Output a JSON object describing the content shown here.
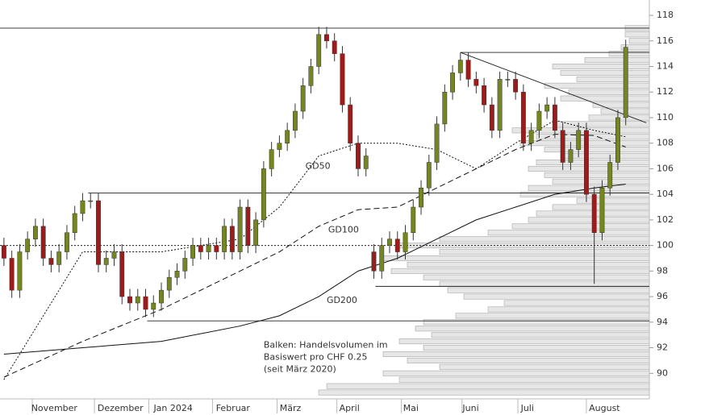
{
  "chart_data": {
    "type": "candlestick",
    "ylim": [
      88,
      119.2
    ],
    "yticks": [
      90,
      92,
      94,
      96,
      98,
      100,
      102,
      104,
      106,
      108,
      110,
      112,
      114,
      116,
      118
    ],
    "xlim": [
      -0.5,
      82
    ],
    "xticks": [
      {
        "value": 6.4,
        "label": "November"
      },
      {
        "value": 14.8,
        "label": "Dezember"
      },
      {
        "value": 21.5,
        "label": "Jan 2024"
      },
      {
        "value": 29.1,
        "label": "Februar"
      },
      {
        "value": 36.4,
        "label": "März"
      },
      {
        "value": 43.9,
        "label": "April"
      },
      {
        "value": 51.7,
        "label": "Mai"
      },
      {
        "value": 59.3,
        "label": "Juni"
      },
      {
        "value": 66.5,
        "label": "Juli"
      },
      {
        "value": 76.3,
        "label": "August"
      }
    ],
    "month_starts": [
      3.6,
      11.5,
      18.4,
      26.5,
      34.7,
      42.3,
      50.5,
      58.2,
      65.3,
      74
    ],
    "up_color": "#74861f",
    "down_color": "#9e1b1b",
    "open": [
      100,
      99,
      96.5,
      99.5,
      100.5,
      101.5,
      99,
      98.5,
      99.5,
      101,
      102.5,
      103.5,
      103.5,
      98.5,
      99,
      99.5,
      96,
      95.5,
      96,
      95,
      95.5,
      96.5,
      97.5,
      98,
      99,
      100,
      99.5,
      100,
      99.5,
      101.5,
      99.5,
      103,
      100,
      102,
      106,
      107.5,
      108,
      109,
      110.5,
      112.5,
      114,
      116.5,
      116,
      115,
      111,
      108,
      106,
      99.5,
      98,
      100,
      100.5,
      99.5,
      101,
      103,
      104.5,
      106.5,
      109.5,
      112,
      113.5,
      114.5,
      113,
      112.5,
      111,
      109,
      113,
      113,
      112,
      108,
      109,
      110.5,
      111,
      109,
      106.5,
      107.5,
      109,
      104,
      101,
      104.5,
      106.5,
      110
    ],
    "high": [
      100.6,
      99.6,
      100.1,
      101.1,
      102.1,
      102.1,
      99.6,
      100.1,
      101.6,
      103.1,
      104.1,
      104.1,
      104.1,
      99.6,
      100.1,
      100.1,
      96.6,
      96.6,
      96.6,
      96.1,
      97.1,
      98.1,
      98.6,
      99.6,
      100.6,
      100.6,
      100.6,
      100.6,
      102.1,
      102.1,
      103.6,
      103.6,
      102.6,
      106.6,
      108.1,
      108.6,
      109.6,
      111.1,
      113.1,
      114.6,
      117.1,
      117.1,
      116.6,
      115.6,
      111.6,
      108.6,
      107.6,
      100.1,
      100.6,
      101.1,
      101.1,
      101.6,
      103.6,
      105.1,
      107.1,
      110.1,
      112.6,
      114.1,
      115.1,
      115.1,
      113.6,
      113.1,
      111.6,
      113.6,
      113.6,
      113.6,
      112.6,
      109.6,
      111.1,
      111.6,
      111.6,
      109.6,
      108.1,
      109.6,
      109.6,
      104.6,
      105.1,
      107.1,
      110.6,
      116.1
    ],
    "low": [
      98.4,
      95.9,
      95.9,
      98.9,
      99.9,
      98.4,
      97.9,
      97.9,
      98.9,
      100.4,
      101.9,
      102.9,
      97.9,
      97.9,
      98.4,
      95.4,
      94.9,
      94.9,
      94.4,
      94.4,
      94.9,
      95.9,
      96.9,
      97.4,
      98.4,
      98.9,
      98.9,
      98.9,
      98.9,
      98.9,
      98.9,
      99.4,
      99.4,
      101.4,
      105.4,
      106.9,
      107.4,
      108.4,
      109.9,
      111.9,
      113.4,
      115.4,
      114.4,
      110.4,
      107.4,
      105.4,
      105.4,
      97.4,
      97.4,
      99.4,
      98.9,
      98.9,
      100.4,
      102.4,
      103.9,
      105.9,
      108.9,
      111.4,
      112.9,
      112.4,
      111.9,
      110.4,
      108.4,
      108.4,
      112.4,
      111.4,
      107.4,
      107.4,
      108.4,
      109.9,
      108.4,
      105.9,
      105.9,
      106.9,
      103.4,
      97,
      100.4,
      103.9,
      105.9,
      109.4
    ],
    "close": [
      99,
      96.5,
      99.5,
      100.5,
      101.5,
      99,
      98.5,
      99.5,
      101,
      102.5,
      103.5,
      103.5,
      98.5,
      99,
      99.5,
      96,
      95.5,
      96,
      95,
      95.5,
      96.5,
      97.5,
      98,
      99,
      100,
      99.5,
      100,
      99.5,
      101.5,
      99.5,
      103,
      100,
      102,
      106,
      107.5,
      108,
      109,
      110.5,
      112.5,
      114,
      116.5,
      116,
      115,
      111,
      108,
      106,
      107,
      98,
      100,
      100.5,
      99.5,
      101,
      103,
      104.5,
      106.5,
      109.5,
      112,
      113.5,
      114.5,
      113,
      112.5,
      111,
      109,
      113,
      113,
      112,
      108,
      109,
      110.5,
      111,
      109,
      106.5,
      107.5,
      109,
      104,
      101,
      104.5,
      106.5,
      110,
      115.5
    ],
    "moving_averages": [
      {
        "name": "GD50",
        "style": "dotted",
        "label_at": [
          38.3,
          106.2
        ],
        "x": [
          0,
          10,
          20,
          30,
          35,
          40,
          45,
          50,
          55,
          60,
          65,
          70,
          75,
          79
        ],
        "values": [
          89.5,
          99.5,
          99.5,
          100.5,
          103,
          107,
          108,
          108,
          107.5,
          106,
          108,
          109.8,
          109,
          108.5
        ]
      },
      {
        "name": "GD100",
        "style": "dashed",
        "label_at": [
          41.2,
          101.2
        ],
        "x": [
          0,
          10,
          20,
          30,
          35,
          40,
          45,
          50,
          55,
          60,
          65,
          70,
          75,
          79
        ],
        "values": [
          89.7,
          92.5,
          95,
          98,
          99.5,
          101.5,
          102.8,
          103,
          104.5,
          106,
          107.5,
          108.7,
          108.6,
          107.7
        ]
      },
      {
        "name": "GD200",
        "style": "solid",
        "label_at": [
          41,
          95.7
        ],
        "x": [
          0,
          10,
          20,
          30,
          35,
          40,
          45,
          50,
          55,
          60,
          65,
          70,
          75,
          79
        ],
        "values": [
          91.5,
          92,
          92.5,
          93.7,
          94.5,
          96,
          98,
          99,
          100.5,
          102,
          103,
          104,
          104.5,
          104.8
        ]
      }
    ],
    "levels": [
      {
        "value": 117,
        "from": -0.5
      },
      {
        "value": 115.1,
        "from": 58
      },
      {
        "value": 104.1,
        "from": 10.7
      },
      {
        "value": 96.8,
        "from": 47.2
      },
      {
        "value": 94.1,
        "from": 18.2
      },
      {
        "value": 100,
        "from": -0.5,
        "dotted": true
      }
    ],
    "trendline": {
      "x": [
        58,
        81.6
      ],
      "values": [
        115.1,
        109.6
      ]
    },
    "annotation": [
      "Balken: Handelsvolumen im",
      "Basiswert pro CHF 0.25",
      "(seit März 2020)"
    ],
    "annotation_at": [
      33,
      92.2
    ],
    "volume_profile": {
      "prices": [
        117,
        116.5,
        116,
        115.5,
        115,
        114.5,
        114,
        113.5,
        113,
        112.5,
        112,
        111.5,
        111,
        110.5,
        110,
        109.5,
        109,
        108.5,
        108,
        107.5,
        107,
        106.5,
        106,
        105.5,
        105,
        104.5,
        104,
        103.5,
        103,
        102.5,
        102,
        101.5,
        101,
        100.5,
        100,
        99.5,
        99,
        98.5,
        98,
        97.5,
        97,
        96.5,
        96,
        95.5,
        95,
        94.5,
        94,
        93.5,
        93,
        92.5,
        92,
        91.5,
        91,
        90.5,
        90,
        89.5,
        89,
        88.5
      ],
      "values": [
        30,
        30,
        25,
        35,
        50,
        80,
        120,
        110,
        90,
        130,
        100,
        110,
        70,
        60,
        75,
        120,
        170,
        140,
        160,
        130,
        110,
        140,
        150,
        130,
        120,
        150,
        160,
        90,
        120,
        140,
        150,
        170,
        200,
        260,
        310,
        260,
        330,
        300,
        320,
        280,
        260,
        250,
        230,
        180,
        200,
        240,
        280,
        290,
        270,
        310,
        280,
        330,
        300,
        260,
        330,
        310,
        400,
        410
      ]
    }
  }
}
